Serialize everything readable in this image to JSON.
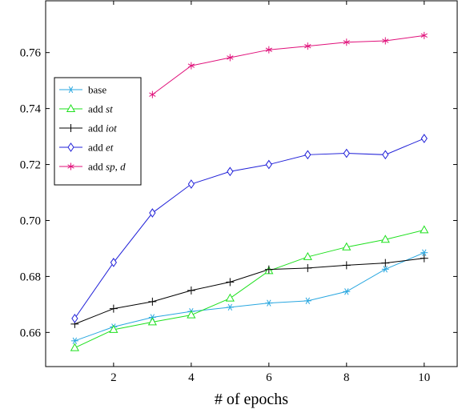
{
  "chart_data": {
    "type": "line",
    "title": "",
    "xlabel": "# of epochs",
    "ylabel": "",
    "xlim": [
      0.25,
      10.85
    ],
    "ylim": [
      0.6478,
      0.7785
    ],
    "xticks": [
      2,
      4,
      6,
      8,
      10
    ],
    "yticks": [
      0.66,
      0.68,
      0.7,
      0.72,
      0.74,
      0.76
    ],
    "ytick_labels": [
      "0.66",
      "0.68",
      "0.70",
      "0.72",
      "0.74",
      "0.76"
    ],
    "grid": false,
    "legend_position": "upper-left",
    "x": [
      1,
      2,
      3,
      4,
      5,
      6,
      7,
      8,
      9,
      10
    ],
    "series": [
      {
        "name": "base",
        "name_parts": [
          {
            "t": "base",
            "i": false
          }
        ],
        "color": "#29a7e0",
        "marker": "asterisk",
        "values": [
          0.657,
          0.662,
          0.6654,
          0.6675,
          0.669,
          0.6705,
          0.6713,
          0.6746,
          0.6826,
          0.6885
        ]
      },
      {
        "name": "add st",
        "name_parts": [
          {
            "t": "add ",
            "i": false
          },
          {
            "t": "st",
            "i": true
          }
        ],
        "color": "#1ee01e",
        "marker": "triangle",
        "values": [
          0.6545,
          0.661,
          0.6637,
          0.6662,
          0.6722,
          0.682,
          0.687,
          0.6905,
          0.6932,
          0.6966
        ]
      },
      {
        "name": "add iot",
        "name_parts": [
          {
            "t": "add ",
            "i": false
          },
          {
            "t": "iot",
            "i": true
          }
        ],
        "color": "#000000",
        "marker": "plus",
        "values": [
          0.663,
          0.6685,
          0.671,
          0.675,
          0.678,
          0.6825,
          0.683,
          0.684,
          0.6848,
          0.6865
        ]
      },
      {
        "name": "add et",
        "name_parts": [
          {
            "t": "add ",
            "i": false
          },
          {
            "t": "et",
            "i": true
          }
        ],
        "color": "#2020d8",
        "marker": "diamond",
        "values": [
          0.665,
          0.685,
          0.7027,
          0.713,
          0.7175,
          0.72,
          0.7235,
          0.724,
          0.7235,
          0.7293
        ]
      },
      {
        "name": "add sp, d",
        "name_parts": [
          {
            "t": "add ",
            "i": false
          },
          {
            "t": "sp",
            "i": true
          },
          {
            "t": ", ",
            "i": false
          },
          {
            "t": "d",
            "i": true
          }
        ],
        "color": "#e0107a",
        "marker": "star",
        "values": [
          null,
          null,
          0.745,
          0.7553,
          0.7582,
          0.761,
          0.7623,
          0.7637,
          0.7642,
          0.7661
        ]
      }
    ]
  }
}
